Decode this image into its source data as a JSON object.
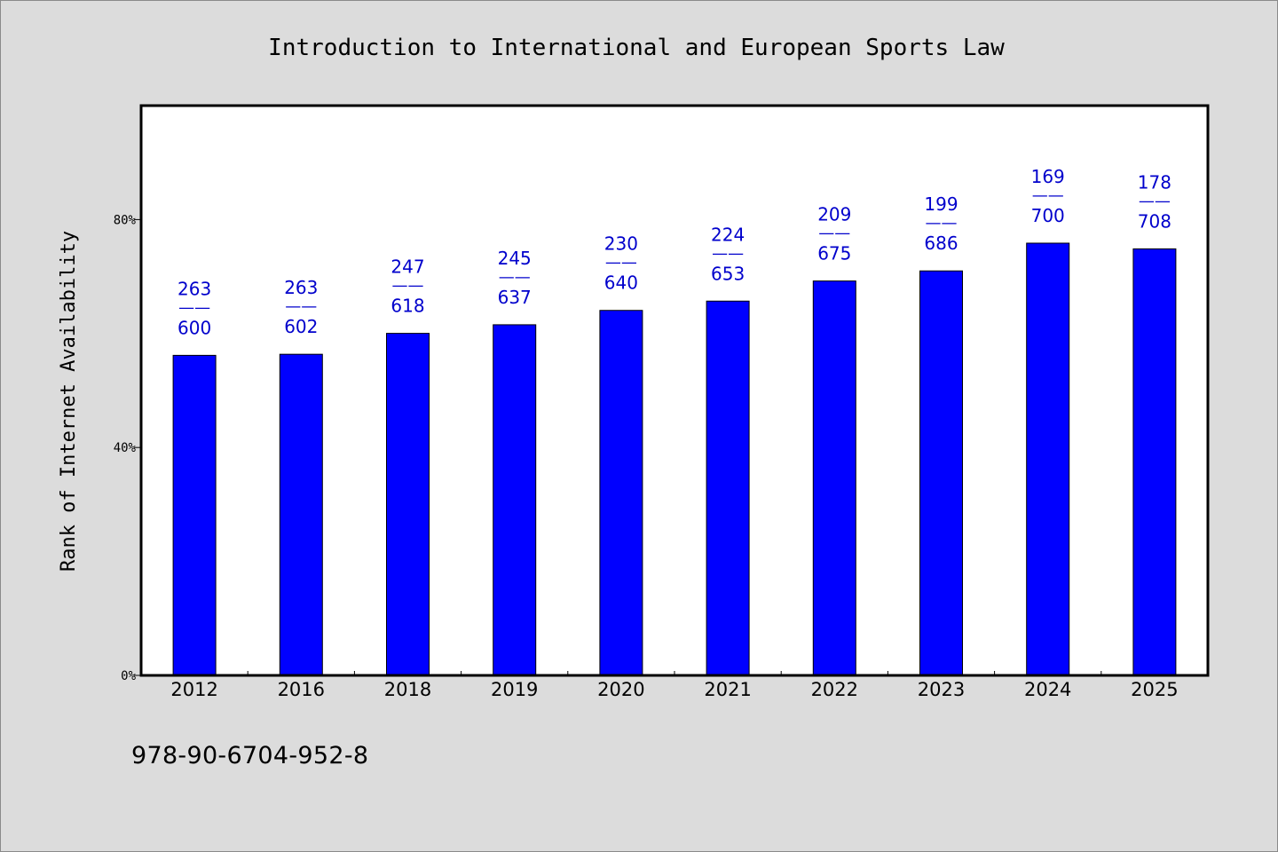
{
  "chart_data": {
    "type": "bar",
    "title": "Introduction to International and European Sports Law",
    "xlabel": "",
    "ylabel": "Rank of Internet Availability",
    "categories": [
      "2012",
      "2016",
      "2018",
      "2019",
      "2020",
      "2021",
      "2022",
      "2023",
      "2024",
      "2025"
    ],
    "values": [
      0.5617,
      0.5636,
      0.6003,
      0.6154,
      0.6406,
      0.6569,
      0.6922,
      0.7099,
      0.7586,
      0.7486
    ],
    "labels_top": [
      "263",
      "263",
      "247",
      "245",
      "230",
      "224",
      "209",
      "199",
      "169",
      "178"
    ],
    "labels_bottom": [
      "600",
      "602",
      "618",
      "637",
      "640",
      "653",
      "675",
      "686",
      "700",
      "708"
    ],
    "label_separator": "——",
    "ylim": [
      0,
      1
    ],
    "y_ticks": [
      0,
      0.4,
      0.8
    ],
    "y_tick_labels": [
      "0%",
      "40%",
      "80%"
    ],
    "grid": false,
    "bar_color": "#0000ff",
    "label_color": "#0000cc"
  },
  "footer": {
    "isbn": "978-90-6704-952-8"
  }
}
